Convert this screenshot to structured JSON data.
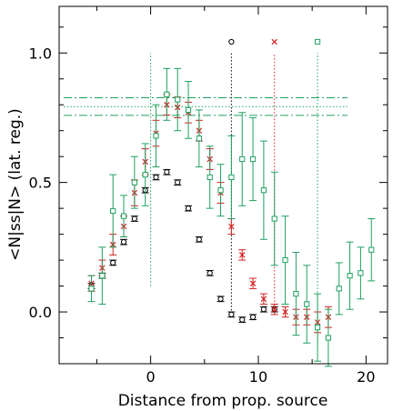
{
  "chart_data": {
    "type": "scatter",
    "xlabel": "Distance from prop. source",
    "ylabel": "<N|ss|N> (lat. reg.)",
    "xlim": [
      -8.5,
      22
    ],
    "ylim": [
      -0.2,
      1.18
    ],
    "xticks": [
      0,
      10,
      20
    ],
    "xtick_labels": [
      "0",
      "10",
      "20"
    ],
    "yticks": [
      0.0,
      0.5,
      1.0
    ],
    "ytick_labels": [
      "0.0",
      "0.5",
      "1.0"
    ],
    "grid": false,
    "marker_legend": [
      {
        "symbol": "o",
        "label": "o",
        "x": 7.5,
        "color": "#000000"
      },
      {
        "symbol": "x",
        "label": "×",
        "x": 11.5,
        "color": "#d42020"
      },
      {
        "symbol": "s",
        "label": "□",
        "x": 15.5,
        "color": "#20a060"
      }
    ],
    "vertical_lines": [
      {
        "x": 0,
        "y0": 0.1,
        "y1": 1.0,
        "color": "#20a060",
        "style": "dotted"
      },
      {
        "x": 7.5,
        "y0": -0.02,
        "y1": 1.0,
        "color": "#000000",
        "style": "dotted"
      },
      {
        "x": 11.5,
        "y0": 0.0,
        "y1": 1.0,
        "color": "#d42020",
        "style": "dotted"
      },
      {
        "x": 15.5,
        "y0": -0.12,
        "y1": 1.0,
        "color": "#20a060",
        "style": "dotted"
      }
    ],
    "horizontal_bands": [
      {
        "y": 0.827,
        "color": "#20a060",
        "style": "dashdot"
      },
      {
        "y": 0.793,
        "color": "#20a060",
        "style": "dotted"
      },
      {
        "y": 0.759,
        "color": "#20a060",
        "style": "dashdot"
      }
    ],
    "series": [
      {
        "marker": "o",
        "color": "#000000",
        "points": [
          {
            "x": -5.5,
            "y": 0.1,
            "err": 0.01
          },
          {
            "x": -4.5,
            "y": 0.14,
            "err": 0.01
          },
          {
            "x": -3.5,
            "y": 0.19,
            "err": 0.01
          },
          {
            "x": -2.5,
            "y": 0.27,
            "err": 0.01
          },
          {
            "x": -1.5,
            "y": 0.36,
            "err": 0.01
          },
          {
            "x": -0.5,
            "y": 0.47,
            "err": 0.01
          },
          {
            "x": 0.5,
            "y": 0.52,
            "err": 0.01
          },
          {
            "x": 1.5,
            "y": 0.54,
            "err": 0.01
          },
          {
            "x": 2.5,
            "y": 0.5,
            "err": 0.01
          },
          {
            "x": 3.5,
            "y": 0.4,
            "err": 0.01
          },
          {
            "x": 4.5,
            "y": 0.28,
            "err": 0.01
          },
          {
            "x": 5.5,
            "y": 0.15,
            "err": 0.01
          },
          {
            "x": 6.5,
            "y": 0.05,
            "err": 0.01
          },
          {
            "x": 7.5,
            "y": -0.01,
            "err": 0.01
          },
          {
            "x": 8.5,
            "y": -0.03,
            "err": 0.01
          },
          {
            "x": 9.5,
            "y": -0.02,
            "err": 0.01
          },
          {
            "x": 10.5,
            "y": 0.01,
            "err": 0.01
          },
          {
            "x": 11.5,
            "y": 0.01,
            "err": 0.01
          }
        ]
      },
      {
        "marker": "x",
        "color": "#d42020",
        "points": [
          {
            "x": -5.5,
            "y": 0.11,
            "err": 0.03
          },
          {
            "x": -4.5,
            "y": 0.17,
            "err": 0.03
          },
          {
            "x": -3.5,
            "y": 0.26,
            "err": 0.04
          },
          {
            "x": -2.5,
            "y": 0.33,
            "err": 0.04
          },
          {
            "x": -1.5,
            "y": 0.46,
            "err": 0.05
          },
          {
            "x": -0.5,
            "y": 0.58,
            "err": 0.05
          },
          {
            "x": 0.5,
            "y": 0.69,
            "err": 0.05
          },
          {
            "x": 1.5,
            "y": 0.8,
            "err": 0.04
          },
          {
            "x": 2.5,
            "y": 0.79,
            "err": 0.04
          },
          {
            "x": 3.5,
            "y": 0.77,
            "err": 0.04
          },
          {
            "x": 4.5,
            "y": 0.7,
            "err": 0.04
          },
          {
            "x": 5.5,
            "y": 0.59,
            "err": 0.04
          },
          {
            "x": 6.5,
            "y": 0.46,
            "err": 0.04
          },
          {
            "x": 7.5,
            "y": 0.33,
            "err": 0.03
          },
          {
            "x": 8.5,
            "y": 0.22,
            "err": 0.02
          },
          {
            "x": 9.5,
            "y": 0.11,
            "err": 0.02
          },
          {
            "x": 10.5,
            "y": 0.05,
            "err": 0.02
          },
          {
            "x": 11.5,
            "y": 0.01,
            "err": 0.02
          },
          {
            "x": 12.5,
            "y": 0.0,
            "err": 0.02
          },
          {
            "x": 13.5,
            "y": -0.02,
            "err": 0.03
          },
          {
            "x": 14.5,
            "y": -0.02,
            "err": 0.03
          },
          {
            "x": 15.5,
            "y": -0.04,
            "err": 0.04
          },
          {
            "x": 16.5,
            "y": -0.02,
            "err": 0.04
          }
        ]
      },
      {
        "marker": "s",
        "color": "#20a060",
        "points": [
          {
            "x": -5.5,
            "y": 0.09,
            "err": 0.05
          },
          {
            "x": -4.5,
            "y": 0.14,
            "err": 0.11
          },
          {
            "x": -3.5,
            "y": 0.39,
            "err": 0.14
          },
          {
            "x": -2.5,
            "y": 0.37,
            "err": 0.08
          },
          {
            "x": -1.5,
            "y": 0.5,
            "err": 0.1
          },
          {
            "x": -0.5,
            "y": 0.53,
            "err": 0.12
          },
          {
            "x": 0.5,
            "y": 0.68,
            "err": 0.12
          },
          {
            "x": 1.5,
            "y": 0.84,
            "err": 0.1
          },
          {
            "x": 2.5,
            "y": 0.82,
            "err": 0.12
          },
          {
            "x": 3.5,
            "y": 0.78,
            "err": 0.11
          },
          {
            "x": 4.5,
            "y": 0.67,
            "err": 0.11
          },
          {
            "x": 5.5,
            "y": 0.52,
            "err": 0.12
          },
          {
            "x": 6.5,
            "y": 0.47,
            "err": 0.1
          },
          {
            "x": 7.5,
            "y": 0.52,
            "err": 0.16
          },
          {
            "x": 8.5,
            "y": 0.59,
            "err": 0.18
          },
          {
            "x": 9.5,
            "y": 0.59,
            "err": 0.16
          },
          {
            "x": 10.5,
            "y": 0.47,
            "err": 0.19
          },
          {
            "x": 11.5,
            "y": 0.36,
            "err": 0.18
          },
          {
            "x": 12.5,
            "y": 0.2,
            "err": 0.17
          },
          {
            "x": 13.5,
            "y": 0.07,
            "err": 0.16
          },
          {
            "x": 14.5,
            "y": 0.03,
            "err": 0.15
          },
          {
            "x": 15.5,
            "y": -0.06,
            "err": 0.13
          },
          {
            "x": 16.5,
            "y": -0.1,
            "err": 0.11
          },
          {
            "x": 17.5,
            "y": 0.09,
            "err": 0.1
          },
          {
            "x": 18.5,
            "y": 0.14,
            "err": 0.13
          },
          {
            "x": 19.5,
            "y": 0.15,
            "err": 0.1
          },
          {
            "x": 20.5,
            "y": 0.24,
            "err": 0.12
          }
        ]
      }
    ]
  }
}
